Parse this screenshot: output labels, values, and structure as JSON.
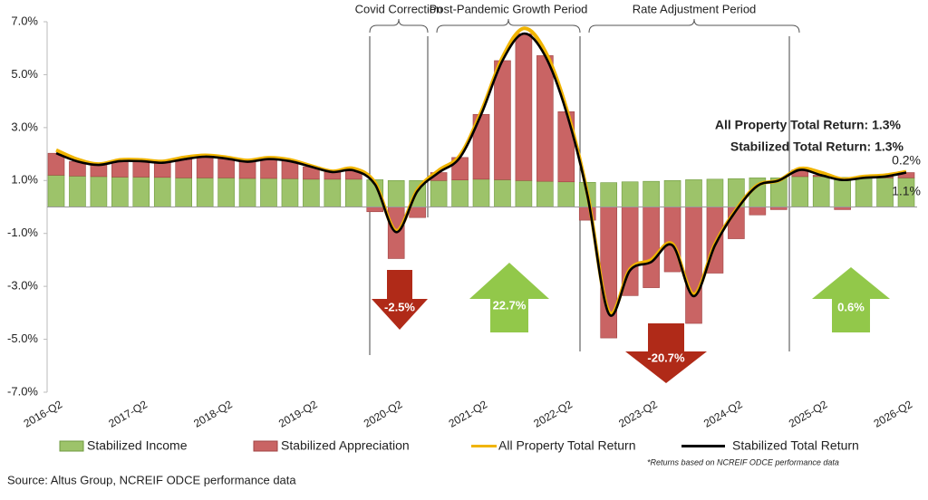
{
  "chart_data": {
    "type": "bar",
    "stacked": true,
    "categories": [
      "2016-Q2",
      null,
      null,
      null,
      "2017-Q2",
      null,
      null,
      null,
      "2018-Q2",
      null,
      null,
      null,
      "2019-Q2",
      null,
      null,
      null,
      "2020-Q2",
      null,
      null,
      null,
      "2021-Q2",
      null,
      null,
      null,
      "2022-Q2",
      null,
      null,
      null,
      "2023-Q2",
      null,
      null,
      null,
      "2024-Q2",
      null,
      null,
      null,
      "2025-Q2",
      null,
      null,
      null,
      "2026-Q2"
    ],
    "ylim": [
      -7,
      7
    ],
    "yticks": [
      {
        "value": 7,
        "label": "7.0%"
      },
      {
        "value": 5,
        "label": "5.0%"
      },
      {
        "value": 3,
        "label": "3.0%"
      },
      {
        "value": 1,
        "label": "1.0%"
      },
      {
        "value": -1,
        "label": "-1.0%"
      },
      {
        "value": -3,
        "label": "-3.0%"
      },
      {
        "value": -5,
        "label": "-5.0%"
      },
      {
        "value": -7,
        "label": "-7.0%"
      }
    ],
    "grid": false,
    "series": [
      {
        "name": "Stabilized Income",
        "kind": "bar",
        "color": "#9dc36a",
        "values": [
          1.2,
          1.17,
          1.15,
          1.13,
          1.13,
          1.12,
          1.1,
          1.1,
          1.1,
          1.08,
          1.08,
          1.07,
          1.05,
          1.05,
          1.05,
          1.03,
          1.0,
          1.0,
          1.0,
          1.02,
          1.05,
          1.03,
          1.0,
          0.97,
          0.95,
          0.93,
          0.92,
          0.95,
          0.97,
          1.0,
          1.03,
          1.05,
          1.07,
          1.1,
          1.1,
          1.15,
          1.15,
          1.12,
          1.1,
          1.1,
          1.1
        ],
        "value_labels": [
          null,
          null,
          null,
          null,
          null,
          null,
          null,
          null,
          null,
          null,
          null,
          null,
          null,
          null,
          null,
          null,
          null,
          null,
          null,
          null,
          null,
          null,
          null,
          null,
          null,
          null,
          null,
          null,
          null,
          null,
          null,
          null,
          null,
          null,
          null,
          null,
          null,
          null,
          null,
          null,
          "1.1%"
        ]
      },
      {
        "name": "Stabilized Appreciation",
        "kind": "bar",
        "color": "#c96464",
        "values": [
          0.83,
          0.55,
          0.44,
          0.6,
          0.6,
          0.55,
          0.7,
          0.8,
          0.73,
          0.63,
          0.73,
          0.66,
          0.47,
          0.27,
          0.33,
          -0.18,
          -1.95,
          -0.4,
          0.3,
          0.85,
          2.45,
          4.5,
          5.55,
          4.75,
          2.65,
          -0.5,
          -4.95,
          -3.35,
          -3.05,
          -2.45,
          -4.4,
          -2.5,
          -1.2,
          -0.3,
          -0.1,
          0.25,
          0.05,
          -0.1,
          0.0,
          0.05,
          0.2
        ],
        "value_labels": [
          null,
          null,
          null,
          null,
          null,
          null,
          null,
          null,
          null,
          null,
          null,
          null,
          null,
          null,
          null,
          null,
          null,
          null,
          null,
          null,
          null,
          null,
          null,
          null,
          null,
          null,
          null,
          null,
          null,
          null,
          null,
          null,
          null,
          null,
          null,
          null,
          null,
          null,
          null,
          null,
          "0.2%"
        ]
      },
      {
        "name": "All Property Total Return",
        "kind": "line",
        "color": "#f0b400",
        "values": [
          2.15,
          1.8,
          1.62,
          1.78,
          1.78,
          1.72,
          1.87,
          1.95,
          1.88,
          1.76,
          1.86,
          1.78,
          1.55,
          1.35,
          1.45,
          0.92,
          -0.9,
          0.65,
          1.38,
          1.95,
          3.6,
          5.65,
          6.75,
          5.9,
          3.75,
          0.5,
          -3.95,
          -2.35,
          -2.0,
          -1.4,
          -3.3,
          -1.4,
          -0.1,
          0.82,
          1.0,
          1.45,
          1.3,
          1.05,
          1.15,
          1.2,
          1.33
        ]
      },
      {
        "name": "Stabilized Total Return",
        "kind": "line",
        "color": "#000000",
        "values": [
          2.03,
          1.72,
          1.59,
          1.73,
          1.73,
          1.67,
          1.8,
          1.9,
          1.83,
          1.71,
          1.81,
          1.73,
          1.52,
          1.32,
          1.38,
          0.85,
          -0.95,
          0.6,
          1.3,
          1.87,
          3.5,
          5.53,
          6.55,
          5.72,
          3.6,
          0.43,
          -4.03,
          -2.4,
          -2.08,
          -1.45,
          -3.37,
          -1.45,
          -0.13,
          0.8,
          1.0,
          1.4,
          1.2,
          1.02,
          1.1,
          1.15,
          1.3
        ]
      }
    ],
    "periods": [
      "Covid Correction",
      "Post-Pandemic Growth Period",
      "Rate Adjustment Period"
    ],
    "arrows": [
      "-2.5%",
      "22.7%",
      "-20.7%",
      "0.6%"
    ],
    "end_labels": [
      "All Property Total Return: 1.3%",
      "Stabilized Total Return: 1.3%"
    ],
    "footnote": "*Returns based on NCREIF ODCE performance data",
    "source": "Source: Altus Group, NCREIF ODCE performance data"
  }
}
